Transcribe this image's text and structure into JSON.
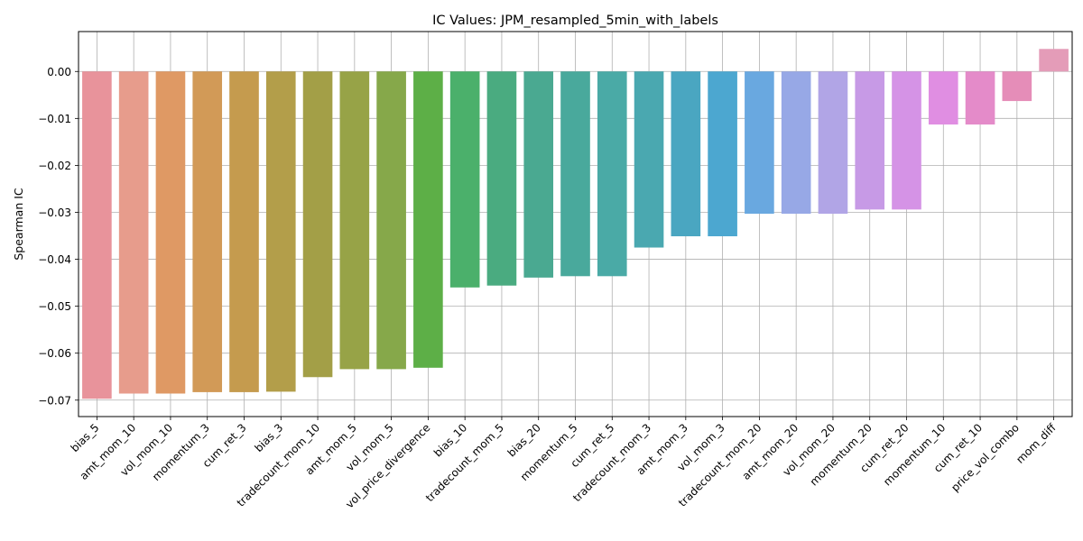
{
  "chart_data": {
    "type": "bar",
    "title": "IC Values: JPM_resampled_5min_with_labels",
    "xlabel": "",
    "ylabel": "Spearman IC",
    "ylim": [
      -0.0735,
      0.0085
    ],
    "yticks": [
      0.0,
      -0.01,
      -0.02,
      -0.03,
      -0.04,
      -0.05,
      -0.06,
      -0.07
    ],
    "ytick_labels": [
      "0.00",
      "−0.01",
      "−0.02",
      "−0.03",
      "−0.04",
      "−0.05",
      "−0.06",
      "−0.07"
    ],
    "grid": true,
    "categories": [
      "bias_5",
      "amt_mom_10",
      "vol_mom_10",
      "momentum_3",
      "cum_ret_3",
      "bias_3",
      "tradecount_mom_10",
      "amt_mom_5",
      "vol_mom_5",
      "vol_price_divergence",
      "bias_10",
      "tradecount_mom_5",
      "bias_20",
      "momentum_5",
      "cum_ret_5",
      "tradecount_mom_3",
      "amt_mom_3",
      "vol_mom_3",
      "tradecount_mom_20",
      "amt_mom_20",
      "vol_mom_20",
      "momentum_20",
      "cum_ret_20",
      "momentum_10",
      "cum_ret_10",
      "price_vol_combo",
      "mom_diff"
    ],
    "values": [
      -0.0697,
      -0.0686,
      -0.0686,
      -0.0683,
      -0.0683,
      -0.0682,
      -0.0651,
      -0.0634,
      -0.0634,
      -0.0631,
      -0.046,
      -0.0456,
      -0.0439,
      -0.0436,
      -0.0436,
      -0.0375,
      -0.0351,
      -0.0351,
      -0.0303,
      -0.0303,
      -0.0303,
      -0.0294,
      -0.0294,
      -0.0113,
      -0.0113,
      -0.0063,
      0.0048
    ],
    "colors": [
      "#e8939b",
      "#e79c8c",
      "#df9964",
      "#d29a57",
      "#c59b4e",
      "#b39e4a",
      "#a39f47",
      "#97a347",
      "#86a84a",
      "#5daf47",
      "#4bb06b",
      "#4aab80",
      "#4aa991",
      "#49a99c",
      "#4aaaa6",
      "#4aa8b0",
      "#4aa6c1",
      "#4ca7d0",
      "#69a8e0",
      "#97a8e6",
      "#b1a5e6",
      "#c79ae6",
      "#d593e6",
      "#e08ee2",
      "#e48bc9",
      "#e58db8",
      "#e49cb8"
    ]
  }
}
